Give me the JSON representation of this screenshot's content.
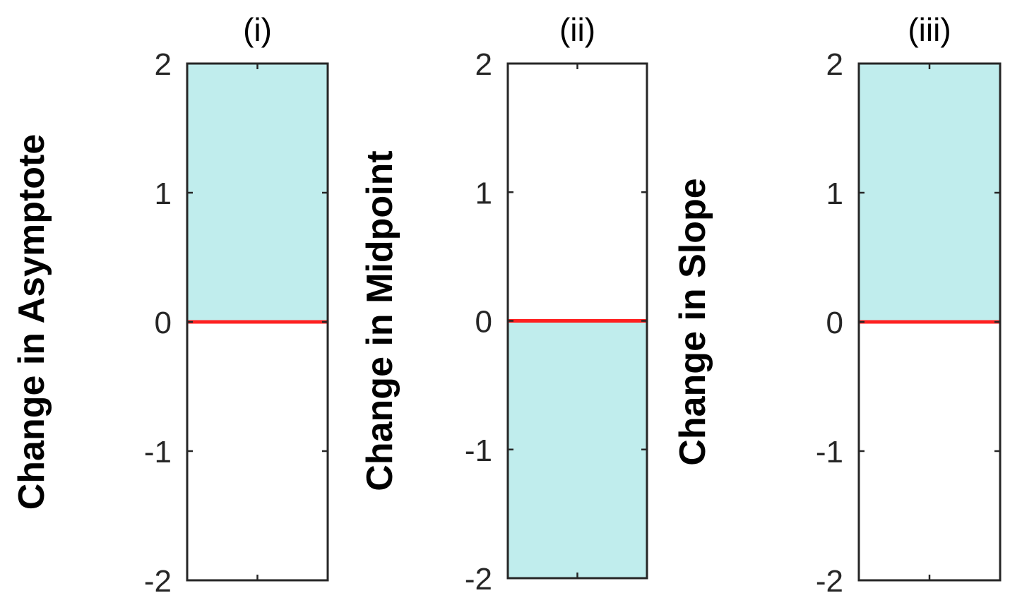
{
  "chart_data": [
    {
      "type": "bar",
      "title": "(i)",
      "ylabel": "Change in Asymptote",
      "ylim": [
        -2,
        2
      ],
      "yticks": [
        2,
        1,
        0,
        -1,
        -2
      ],
      "ytick_labels": [
        "2",
        "1",
        "0",
        "-1",
        "-2"
      ],
      "shaded_range": [
        0,
        2
      ],
      "reference_line": 0,
      "grid": false
    },
    {
      "type": "bar",
      "title": "(ii)",
      "ylabel": "Change in Midpoint",
      "ylim": [
        -2,
        2
      ],
      "yticks": [
        2,
        1,
        0,
        -1,
        -2
      ],
      "ytick_labels": [
        "2",
        "1",
        "0",
        "-1",
        "-2"
      ],
      "shaded_range": [
        -2,
        0
      ],
      "reference_line": 0,
      "grid": false
    },
    {
      "type": "bar",
      "title": "(iii)",
      "ylabel": "Change in Slope",
      "ylim": [
        -2,
        2
      ],
      "yticks": [
        2,
        1,
        0,
        -1,
        -2
      ],
      "ytick_labels": [
        "2",
        "1",
        "0",
        "-1",
        "-2"
      ],
      "shaded_range": [
        0,
        2
      ],
      "reference_line": 0,
      "grid": false
    }
  ],
  "colors": {
    "shade": "#c0eded",
    "reference_line": "#ff2020",
    "axis": "#262626"
  }
}
